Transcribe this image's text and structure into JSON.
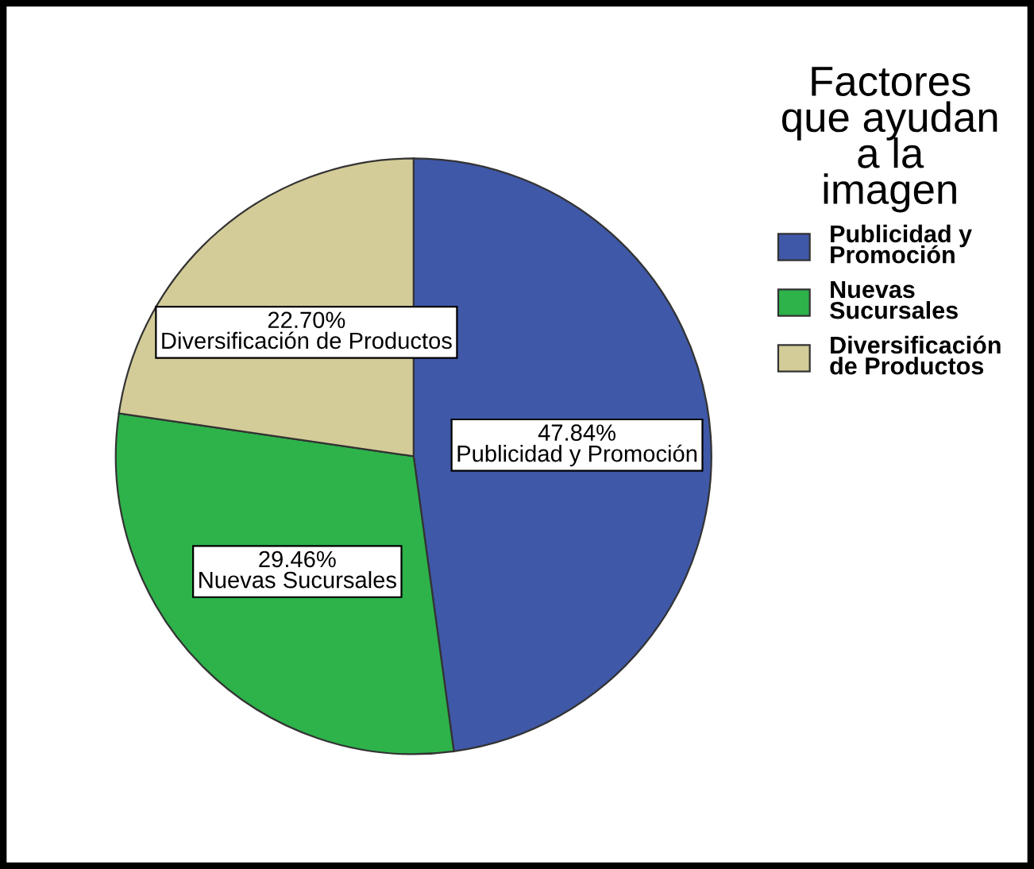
{
  "chart_data": {
    "type": "pie",
    "categories": [
      "Publicidad y Promoción",
      "Nuevas Sucursales",
      "Diversificación de Productos"
    ],
    "values": [
      47.84,
      29.46,
      22.7
    ],
    "value_labels": [
      "47.84%",
      "29.46%",
      "22.70%"
    ],
    "colors": [
      "#3f58a8",
      "#2db34a",
      "#d4cc98"
    ],
    "legend_title": "Factores que ayudan a la imagen",
    "legend": "top right"
  }
}
